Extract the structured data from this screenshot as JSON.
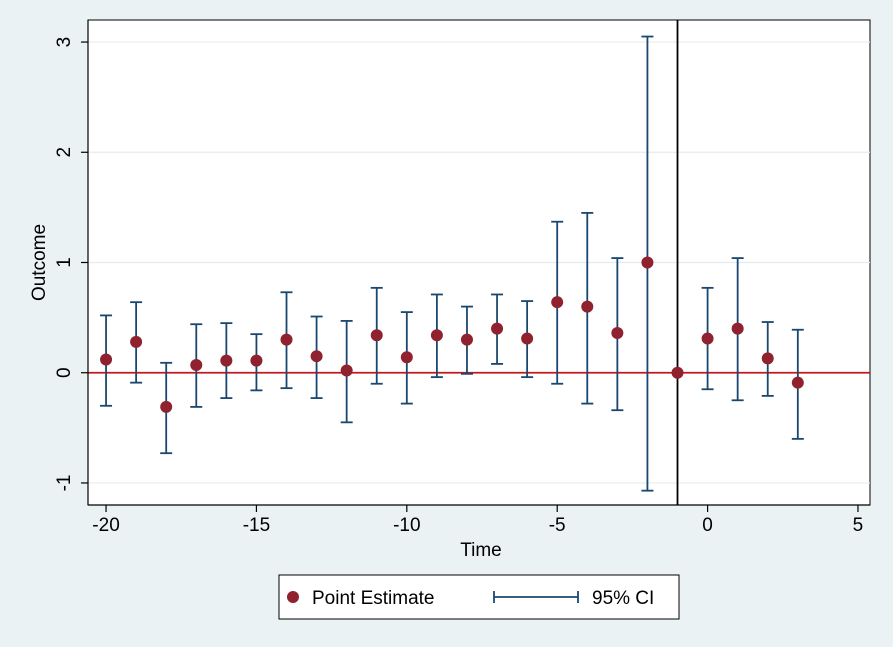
{
  "chart_data": {
    "type": "scatter",
    "xlabel": "Time",
    "ylabel": "Outcome",
    "xlim": [
      -20.6,
      5.4
    ],
    "ylim": [
      -1.2,
      3.2
    ],
    "xticks": [
      "-20",
      "-15",
      "-10",
      "-5",
      "0",
      "5"
    ],
    "xtick_values": [
      -20,
      -15,
      -10,
      -5,
      0,
      5
    ],
    "yticks": [
      "-1",
      "0",
      "1",
      "2",
      "3"
    ],
    "ytick_values": [
      -1,
      0,
      1,
      2,
      3
    ],
    "grid": true,
    "reference_line_y": 0,
    "reference_line_x": -1,
    "legend_position": "bottom",
    "colors": {
      "point": "#90212f",
      "ci": "#1a476f",
      "zero_line": "#c0191e",
      "vline": "#000000",
      "grid": "#e3ecef",
      "plot_bg": "#ffffff",
      "outer_bg": "#eaf2f3"
    },
    "series": [
      {
        "name": "Point Estimate",
        "x": [
          -20,
          -19,
          -18,
          -17,
          -16,
          -15,
          -14,
          -13,
          -12,
          -11,
          -10,
          -9,
          -8,
          -7,
          -6,
          -5,
          -4,
          -3,
          -2,
          -1,
          0,
          1,
          2,
          3
        ],
        "y": [
          0.12,
          0.28,
          -0.31,
          0.07,
          0.11,
          0.11,
          0.3,
          0.15,
          0.02,
          0.34,
          0.14,
          0.34,
          0.3,
          0.4,
          0.31,
          0.64,
          0.6,
          0.36,
          1.0,
          0.0,
          0.31,
          0.4,
          0.13,
          -0.09
        ]
      },
      {
        "name": "95% CI",
        "x": [
          -20,
          -19,
          -18,
          -17,
          -16,
          -15,
          -14,
          -13,
          -12,
          -11,
          -10,
          -9,
          -8,
          -7,
          -6,
          -5,
          -4,
          -3,
          -2,
          0,
          1,
          2,
          3
        ],
        "lower": [
          -0.3,
          -0.09,
          -0.73,
          -0.31,
          -0.23,
          -0.16,
          -0.14,
          -0.23,
          -0.45,
          -0.1,
          -0.28,
          -0.04,
          -0.01,
          0.08,
          -0.04,
          -0.1,
          -0.28,
          -0.34,
          -1.07,
          -0.15,
          -0.25,
          -0.21,
          -0.6
        ],
        "upper": [
          0.52,
          0.64,
          0.09,
          0.44,
          0.45,
          0.35,
          0.73,
          0.51,
          0.47,
          0.77,
          0.55,
          0.71,
          0.6,
          0.71,
          0.65,
          1.37,
          1.45,
          1.04,
          3.05,
          0.77,
          1.04,
          0.46,
          0.39
        ]
      }
    ]
  },
  "legend": {
    "items": [
      {
        "label": "Point Estimate"
      },
      {
        "label": "95% CI"
      }
    ]
  }
}
